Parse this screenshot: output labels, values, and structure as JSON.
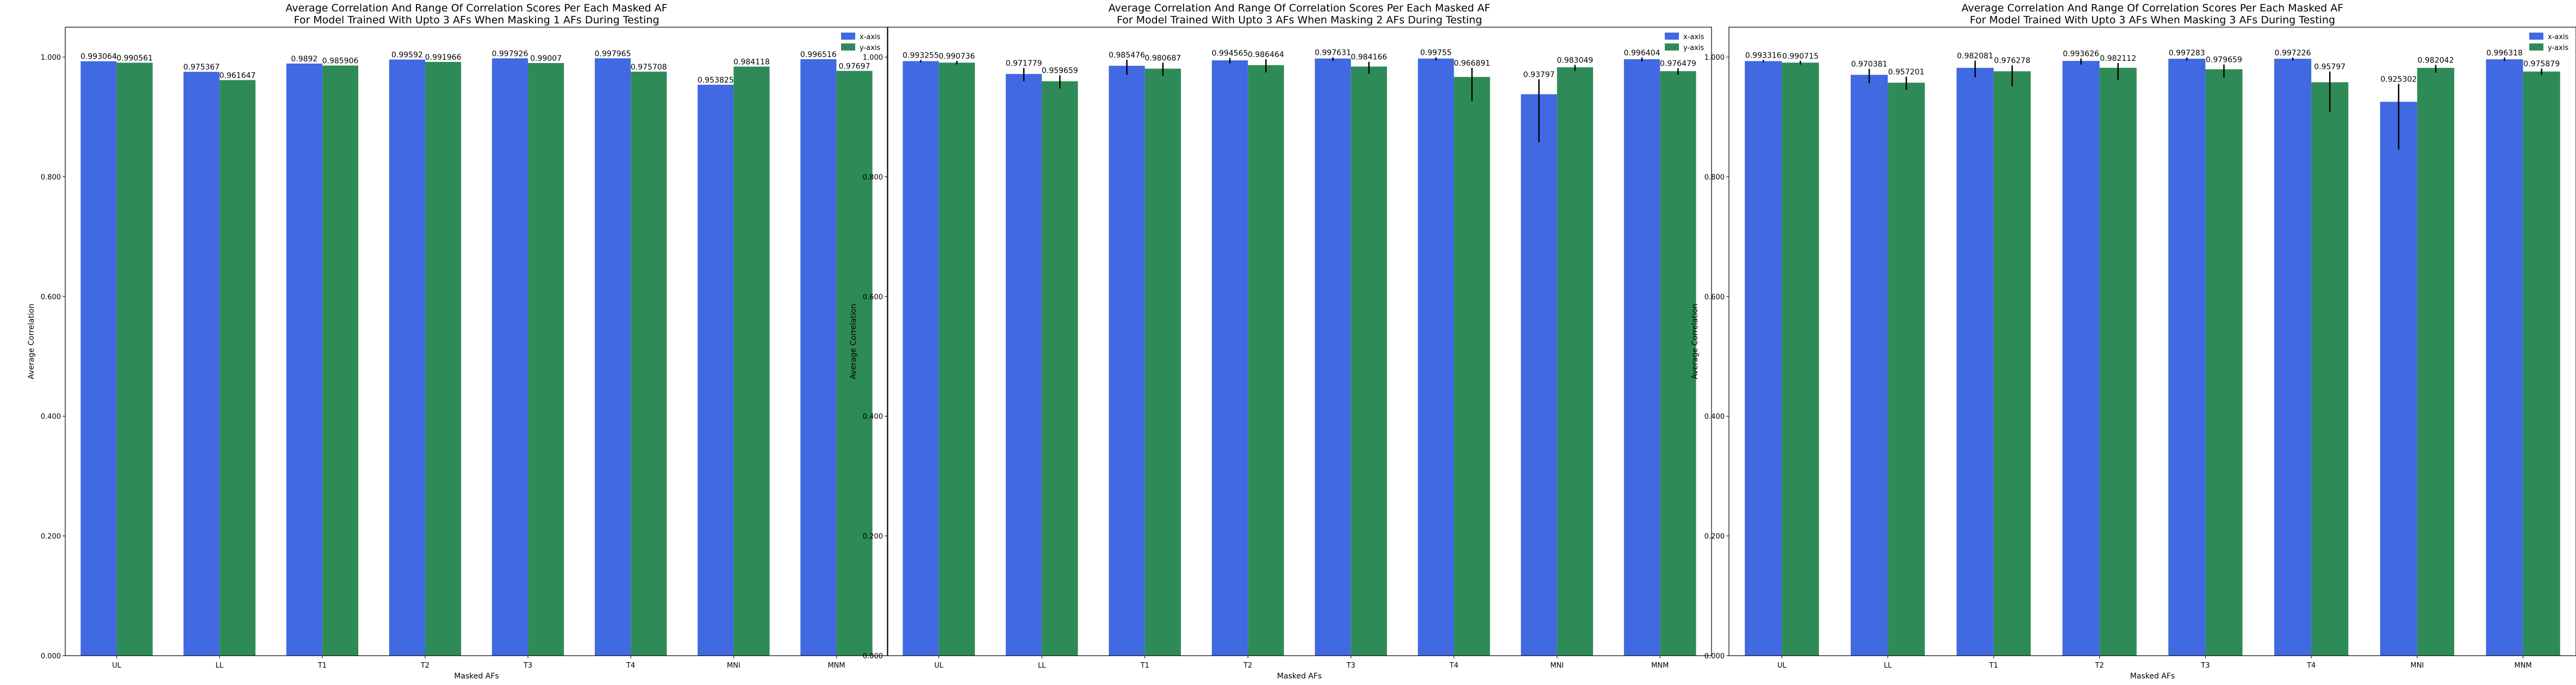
{
  "colors": {
    "x_axis": "#4169E1",
    "y_axis": "#2E8B57",
    "error_bar": "#000000",
    "frame": "#000000"
  },
  "chart_data": [
    {
      "type": "bar",
      "title": "Average Correlation And Range Of Correlation Scores Per Each Masked AF",
      "subtitle": "For Model Trained With Upto 3 AFs When Masking 1 AFs During Testing",
      "xlabel": "Masked AFs",
      "ylabel": "Average Correlation",
      "ylim": [
        0,
        1.05
      ],
      "yticks": [
        "0.000",
        "0.200",
        "0.400",
        "0.600",
        "0.800",
        "1.000"
      ],
      "grid": false,
      "legend_position": "top-right",
      "categories": [
        "UL",
        "LL",
        "T1",
        "T2",
        "T3",
        "T4",
        "MNI",
        "MNM"
      ],
      "series": [
        {
          "name": "x-axis",
          "values": [
            0.993064,
            0.975367,
            0.9892,
            0.99592,
            0.997926,
            0.997965,
            0.953825,
            0.996516
          ],
          "labels": [
            "0.993064",
            "0.975367",
            "0.9892",
            "0.99592",
            "0.997926",
            "0.997965",
            "0.953825",
            "0.996516"
          ],
          "err_lo": [
            0,
            0,
            0,
            0,
            0,
            0,
            0,
            0
          ],
          "err_hi": [
            0,
            0,
            0,
            0,
            0,
            0,
            0,
            0
          ]
        },
        {
          "name": "y-axis",
          "values": [
            0.990561,
            0.961647,
            0.985906,
            0.991966,
            0.99007,
            0.975708,
            0.984118,
            0.97697
          ],
          "labels": [
            "0.990561",
            "0.961647",
            "0.985906",
            "0.991966",
            "0.99007",
            "0.975708",
            "0.984118",
            "0.97697"
          ],
          "err_lo": [
            0,
            0,
            0,
            0,
            0,
            0,
            0,
            0
          ],
          "err_hi": [
            0,
            0,
            0,
            0,
            0,
            0,
            0,
            0
          ]
        }
      ]
    },
    {
      "type": "bar",
      "title": "Average Correlation And Range Of Correlation Scores Per Each Masked AF",
      "subtitle": "For Model Trained With Upto 3 AFs When Masking 2 AFs During Testing",
      "xlabel": "Masked AFs",
      "ylabel": "Average Correlation",
      "ylim": [
        0,
        1.05
      ],
      "yticks": [
        "0.000",
        "0.200",
        "0.400",
        "0.600",
        "0.800",
        "1.000"
      ],
      "grid": false,
      "legend_position": "top-right",
      "categories": [
        "UL",
        "LL",
        "T1",
        "T2",
        "T3",
        "T4",
        "MNI",
        "MNM"
      ],
      "series": [
        {
          "name": "x-axis",
          "values": [
            0.993255,
            0.971779,
            0.985476,
            0.994565,
            0.997631,
            0.99755,
            0.93797,
            0.996404
          ],
          "labels": [
            "0.993255",
            "0.971779",
            "0.985476",
            "0.994565",
            "0.997631",
            "0.99755",
            "0.93797",
            "0.996404"
          ],
          "err_lo": [
            0.002,
            0.012,
            0.015,
            0.005,
            0.004,
            0.003,
            0.08,
            0.004
          ],
          "err_hi": [
            0.002,
            0.01,
            0.01,
            0.004,
            0.002,
            0.002,
            0.025,
            0.003
          ]
        },
        {
          "name": "y-axis",
          "values": [
            0.990736,
            0.959659,
            0.980687,
            0.986464,
            0.984166,
            0.966891,
            0.983049,
            0.976479
          ],
          "labels": [
            "0.990736",
            "0.959659",
            "0.980687",
            "0.986464",
            "0.984166",
            "0.966891",
            "0.983049",
            "0.976479"
          ],
          "err_lo": [
            0.003,
            0.012,
            0.012,
            0.012,
            0.012,
            0.04,
            0.006,
            0.006
          ],
          "err_hi": [
            0.003,
            0.01,
            0.01,
            0.01,
            0.008,
            0.015,
            0.004,
            0.005
          ]
        }
      ]
    },
    {
      "type": "bar",
      "title": "Average Correlation And Range Of Correlation Scores Per Each Masked AF",
      "subtitle": "For Model Trained With Upto 3 AFs When Masking 3 AFs During Testing",
      "xlabel": "Masked AFs",
      "ylabel": "Average Correlation",
      "ylim": [
        0,
        1.05
      ],
      "yticks": [
        "0.000",
        "0.200",
        "0.400",
        "0.600",
        "0.800",
        "1.000"
      ],
      "grid": false,
      "legend_position": "top-right",
      "categories": [
        "UL",
        "LL",
        "T1",
        "T2",
        "T3",
        "T4",
        "MNI",
        "MNM"
      ],
      "series": [
        {
          "name": "x-axis",
          "values": [
            0.993316,
            0.970381,
            0.982081,
            0.993626,
            0.997283,
            0.997226,
            0.925302,
            0.996318
          ],
          "labels": [
            "0.993316",
            "0.970381",
            "0.982081",
            "0.993626",
            "0.997283",
            "0.997226",
            "0.925302",
            "0.996318"
          ],
          "err_lo": [
            0.002,
            0.014,
            0.016,
            0.006,
            0.003,
            0.003,
            0.08,
            0.003
          ],
          "err_hi": [
            0.002,
            0.01,
            0.012,
            0.004,
            0.002,
            0.002,
            0.03,
            0.003
          ]
        },
        {
          "name": "y-axis",
          "values": [
            0.990715,
            0.957201,
            0.976278,
            0.982112,
            0.979659,
            0.95797,
            0.982042,
            0.975879
          ],
          "labels": [
            "0.990715",
            "0.957201",
            "0.976278",
            "0.982112",
            "0.979659",
            "0.95797",
            "0.982042",
            "0.975879"
          ],
          "err_lo": [
            0.003,
            0.012,
            0.025,
            0.02,
            0.014,
            0.05,
            0.008,
            0.006
          ],
          "err_hi": [
            0.003,
            0.01,
            0.01,
            0.008,
            0.008,
            0.018,
            0.005,
            0.005
          ]
        }
      ]
    }
  ]
}
